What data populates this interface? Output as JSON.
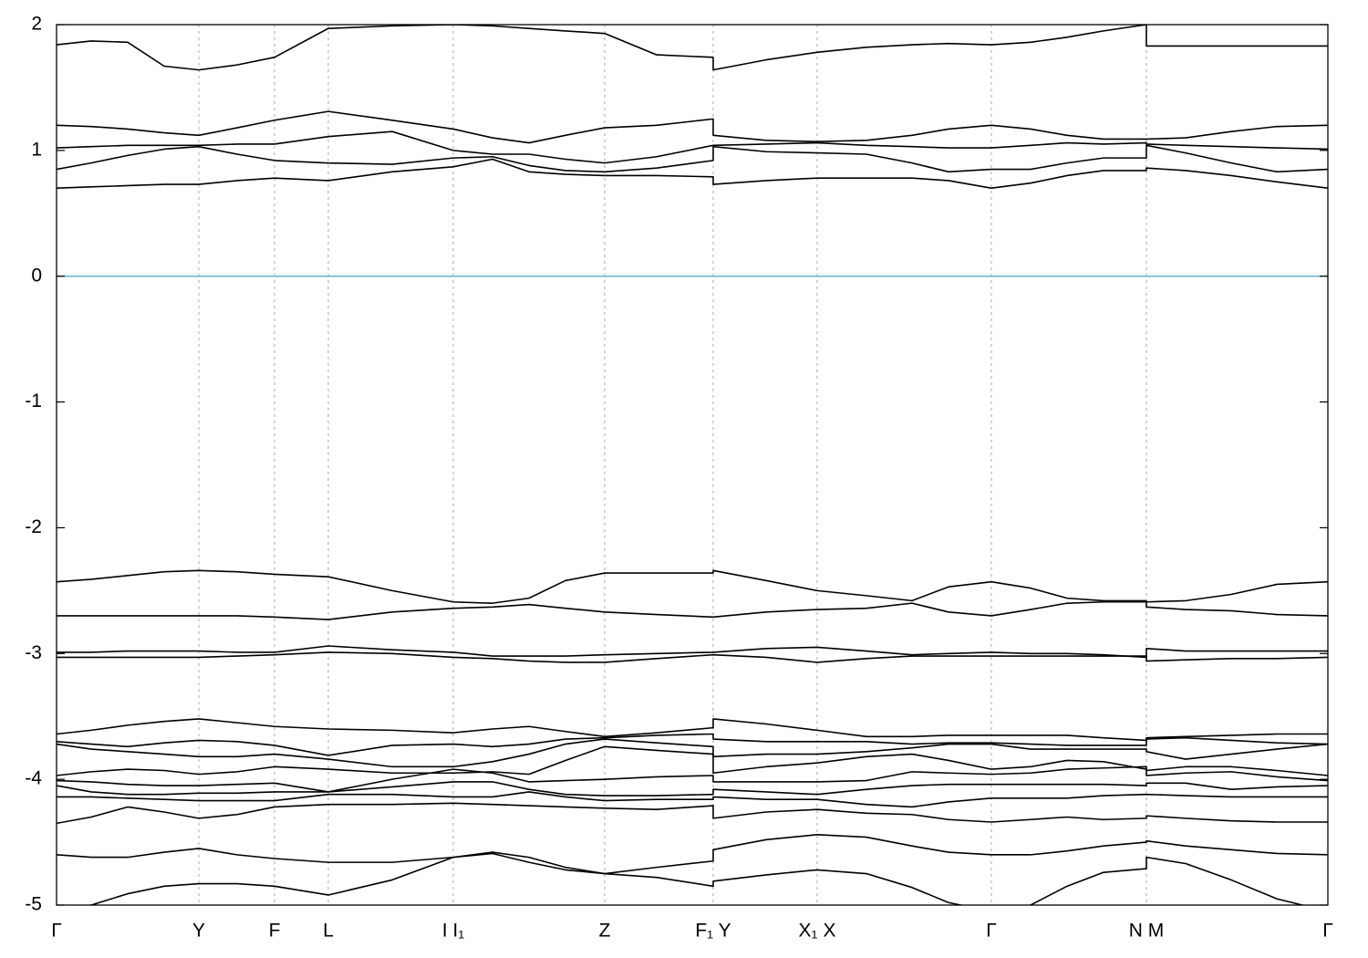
{
  "chart_data": {
    "type": "line",
    "color": "#000000",
    "grid": true,
    "hline": 0,
    "hline_color": "#5ab4c8",
    "xlim": [
      0,
      1.394
    ],
    "ylim": [
      -5,
      2
    ],
    "yticks": [
      -5,
      -4,
      -3,
      -2,
      -1,
      0,
      1,
      2
    ],
    "xticks": [
      {
        "value": 0,
        "label": "Γ"
      },
      {
        "value": 0.156,
        "label": "Y"
      },
      {
        "value": 0.239,
        "label": "F"
      },
      {
        "value": 0.298,
        "label": "L"
      },
      {
        "value": 0.435,
        "label": "I I₁"
      },
      {
        "value": 0.601,
        "label": "Z"
      },
      {
        "value": 0.72,
        "label": "F₁ Y"
      },
      {
        "value": 0.834,
        "label": "X₁ X"
      },
      {
        "value": 1.025,
        "label": "Γ"
      },
      {
        "value": 1.195,
        "label": "N M"
      },
      {
        "value": 1.394,
        "label": "Γ"
      }
    ],
    "x": [
      0,
      0.038,
      0.078,
      0.118,
      0.156,
      0.198,
      0.239,
      0.298,
      0.368,
      0.435,
      0.478,
      0.518,
      0.558,
      0.601,
      0.658,
      0.72,
      0.72,
      0.778,
      0.834,
      0.888,
      0.938,
      0.978,
      1.025,
      1.068,
      1.108,
      1.148,
      1.195,
      1.195,
      1.238,
      1.288,
      1.338,
      1.394
    ],
    "series": [
      {
        "values": [
          1.84,
          1.87,
          1.86,
          1.67,
          1.64,
          1.68,
          1.74,
          1.97,
          1.99,
          2.0,
          1.99,
          1.97,
          1.95,
          1.93,
          1.76,
          1.74,
          1.64,
          1.72,
          1.78,
          1.82,
          1.84,
          1.85,
          1.84,
          1.86,
          1.9,
          1.95,
          2.0,
          1.83,
          1.83,
          1.83,
          1.83,
          1.83
        ]
      },
      {
        "values": [
          1.2,
          1.19,
          1.17,
          1.14,
          1.12,
          1.18,
          1.24,
          1.31,
          1.24,
          1.17,
          1.1,
          1.06,
          1.12,
          1.18,
          1.2,
          1.25,
          1.12,
          1.08,
          1.07,
          1.08,
          1.12,
          1.17,
          1.2,
          1.17,
          1.12,
          1.09,
          1.09,
          1.09,
          1.1,
          1.15,
          1.19,
          1.2
        ]
      },
      {
        "values": [
          1.02,
          1.03,
          1.04,
          1.04,
          1.04,
          1.05,
          1.05,
          1.11,
          1.15,
          1.0,
          0.97,
          0.97,
          0.93,
          0.9,
          0.95,
          1.04,
          1.04,
          1.05,
          1.06,
          1.04,
          1.03,
          1.02,
          1.02,
          1.04,
          1.06,
          1.05,
          1.06,
          1.05,
          1.04,
          1.03,
          1.02,
          1.01
        ]
      },
      {
        "values": [
          0.85,
          0.9,
          0.96,
          1.01,
          1.03,
          0.97,
          0.92,
          0.9,
          0.89,
          0.94,
          0.95,
          0.88,
          0.84,
          0.83,
          0.86,
          0.92,
          1.03,
          0.99,
          0.98,
          0.97,
          0.9,
          0.83,
          0.85,
          0.85,
          0.9,
          0.94,
          0.94,
          1.04,
          0.98,
          0.9,
          0.83,
          0.85
        ]
      },
      {
        "values": [
          0.7,
          0.71,
          0.72,
          0.73,
          0.73,
          0.76,
          0.78,
          0.76,
          0.83,
          0.87,
          0.93,
          0.83,
          0.81,
          0.8,
          0.8,
          0.79,
          0.73,
          0.76,
          0.78,
          0.78,
          0.78,
          0.76,
          0.7,
          0.74,
          0.8,
          0.84,
          0.84,
          0.86,
          0.84,
          0.8,
          0.75,
          0.7
        ]
      },
      {
        "values": [
          -2.43,
          -2.41,
          -2.38,
          -2.35,
          -2.34,
          -2.35,
          -2.37,
          -2.39,
          -2.5,
          -2.59,
          -2.6,
          -2.56,
          -2.42,
          -2.36,
          -2.36,
          -2.36,
          -2.34,
          -2.42,
          -2.5,
          -2.54,
          -2.58,
          -2.47,
          -2.43,
          -2.48,
          -2.56,
          -2.58,
          -2.58,
          -2.59,
          -2.58,
          -2.53,
          -2.45,
          -2.43
        ]
      },
      {
        "values": [
          -2.7,
          -2.7,
          -2.7,
          -2.7,
          -2.7,
          -2.7,
          -2.71,
          -2.73,
          -2.67,
          -2.64,
          -2.63,
          -2.61,
          -2.64,
          -2.67,
          -2.69,
          -2.71,
          -2.71,
          -2.67,
          -2.65,
          -2.64,
          -2.6,
          -2.67,
          -2.7,
          -2.65,
          -2.6,
          -2.59,
          -2.59,
          -2.63,
          -2.65,
          -2.66,
          -2.69,
          -2.7
        ]
      },
      {
        "values": [
          -2.99,
          -2.99,
          -2.98,
          -2.98,
          -2.98,
          -2.99,
          -2.99,
          -2.94,
          -2.97,
          -2.99,
          -3.02,
          -3.02,
          -3.02,
          -3.01,
          -3.0,
          -2.99,
          -2.99,
          -2.96,
          -2.95,
          -2.98,
          -3.01,
          -3.0,
          -2.99,
          -3.0,
          -3.0,
          -3.01,
          -3.03,
          -2.96,
          -2.98,
          -2.98,
          -2.98,
          -2.98
        ]
      },
      {
        "values": [
          -3.03,
          -3.03,
          -3.03,
          -3.03,
          -3.03,
          -3.02,
          -3.01,
          -2.99,
          -3.0,
          -3.03,
          -3.04,
          -3.06,
          -3.07,
          -3.07,
          -3.04,
          -3.01,
          -3.01,
          -3.03,
          -3.07,
          -3.04,
          -3.02,
          -3.02,
          -3.02,
          -3.02,
          -3.02,
          -3.02,
          -3.02,
          -3.06,
          -3.05,
          -3.04,
          -3.04,
          -3.03
        ]
      },
      {
        "values": [
          -3.64,
          -3.61,
          -3.57,
          -3.54,
          -3.52,
          -3.55,
          -3.58,
          -3.6,
          -3.61,
          -3.63,
          -3.6,
          -3.58,
          -3.62,
          -3.66,
          -3.63,
          -3.59,
          -3.52,
          -3.56,
          -3.61,
          -3.66,
          -3.66,
          -3.65,
          -3.65,
          -3.65,
          -3.65,
          -3.67,
          -3.69,
          -3.67,
          -3.66,
          -3.65,
          -3.64,
          -3.64
        ]
      },
      {
        "values": [
          -3.7,
          -3.72,
          -3.74,
          -3.71,
          -3.69,
          -3.7,
          -3.73,
          -3.81,
          -3.73,
          -3.72,
          -3.74,
          -3.72,
          -3.68,
          -3.67,
          -3.65,
          -3.64,
          -3.68,
          -3.7,
          -3.7,
          -3.7,
          -3.72,
          -3.71,
          -3.71,
          -3.72,
          -3.73,
          -3.73,
          -3.73,
          -3.68,
          -3.67,
          -3.69,
          -3.71,
          -3.72
        ]
      },
      {
        "values": [
          -3.72,
          -3.76,
          -3.78,
          -3.8,
          -3.82,
          -3.82,
          -3.8,
          -3.84,
          -3.9,
          -3.9,
          -3.86,
          -3.8,
          -3.72,
          -3.68,
          -3.71,
          -3.74,
          -3.82,
          -3.8,
          -3.8,
          -3.78,
          -3.75,
          -3.72,
          -3.72,
          -3.76,
          -3.76,
          -3.76,
          -3.76,
          -3.78,
          -3.84,
          -3.8,
          -3.76,
          -3.72
        ]
      },
      {
        "values": [
          -3.97,
          -3.94,
          -3.92,
          -3.93,
          -3.96,
          -3.94,
          -3.9,
          -3.92,
          -3.95,
          -3.95,
          -3.94,
          -3.96,
          -3.85,
          -3.74,
          -3.77,
          -3.8,
          -3.95,
          -3.9,
          -3.87,
          -3.82,
          -3.8,
          -3.85,
          -3.92,
          -3.9,
          -3.85,
          -3.86,
          -3.92,
          -3.93,
          -3.9,
          -3.9,
          -3.93,
          -3.97
        ]
      },
      {
        "values": [
          -4.01,
          -4.02,
          -4.04,
          -4.05,
          -4.05,
          -4.04,
          -4.03,
          -4.1,
          -4.0,
          -3.92,
          -3.95,
          -4.02,
          -4.01,
          -4.0,
          -3.98,
          -3.97,
          -4.02,
          -4.02,
          -4.02,
          -4.01,
          -3.94,
          -3.95,
          -3.96,
          -3.95,
          -3.92,
          -3.91,
          -3.9,
          -3.97,
          -3.95,
          -3.94,
          -3.98,
          -4.01
        ]
      },
      {
        "values": [
          -4.05,
          -4.1,
          -4.12,
          -4.12,
          -4.11,
          -4.11,
          -4.1,
          -4.1,
          -4.06,
          -4.02,
          -4.02,
          -4.08,
          -4.12,
          -4.13,
          -4.13,
          -4.12,
          -4.08,
          -4.1,
          -4.12,
          -4.08,
          -4.05,
          -4.04,
          -4.04,
          -4.04,
          -4.04,
          -4.04,
          -4.05,
          -4.03,
          -4.03,
          -4.08,
          -4.06,
          -4.05
        ]
      },
      {
        "values": [
          -4.14,
          -4.14,
          -4.15,
          -4.16,
          -4.17,
          -4.17,
          -4.17,
          -4.12,
          -4.12,
          -4.14,
          -4.14,
          -4.1,
          -4.14,
          -4.17,
          -4.16,
          -4.16,
          -4.14,
          -4.16,
          -4.16,
          -4.2,
          -4.22,
          -4.18,
          -4.15,
          -4.15,
          -4.15,
          -4.13,
          -4.12,
          -4.12,
          -4.13,
          -4.14,
          -4.14,
          -4.14
        ]
      },
      {
        "values": [
          -4.35,
          -4.3,
          -4.22,
          -4.26,
          -4.31,
          -4.28,
          -4.22,
          -4.2,
          -4.2,
          -4.19,
          -4.2,
          -4.21,
          -4.22,
          -4.23,
          -4.24,
          -4.21,
          -4.31,
          -4.26,
          -4.24,
          -4.27,
          -4.28,
          -4.32,
          -4.34,
          -4.32,
          -4.3,
          -4.32,
          -4.31,
          -4.29,
          -4.31,
          -4.33,
          -4.34,
          -4.34
        ]
      },
      {
        "values": [
          -4.6,
          -4.62,
          -4.62,
          -4.58,
          -4.55,
          -4.6,
          -4.63,
          -4.66,
          -4.66,
          -4.62,
          -4.58,
          -4.62,
          -4.7,
          -4.75,
          -4.7,
          -4.65,
          -4.56,
          -4.48,
          -4.44,
          -4.46,
          -4.53,
          -4.58,
          -4.6,
          -4.6,
          -4.57,
          -4.53,
          -4.5,
          -4.49,
          -4.53,
          -4.56,
          -4.59,
          -4.6
        ]
      },
      {
        "values": [
          -5.05,
          -5.0,
          -4.91,
          -4.85,
          -4.83,
          -4.83,
          -4.85,
          -4.92,
          -4.8,
          -4.62,
          -4.59,
          -4.66,
          -4.72,
          -4.75,
          -4.78,
          -4.85,
          -4.81,
          -4.76,
          -4.72,
          -4.75,
          -4.86,
          -4.98,
          -5.05,
          -5.0,
          -4.85,
          -4.74,
          -4.71,
          -4.62,
          -4.67,
          -4.8,
          -4.95,
          -5.05
        ]
      }
    ]
  }
}
